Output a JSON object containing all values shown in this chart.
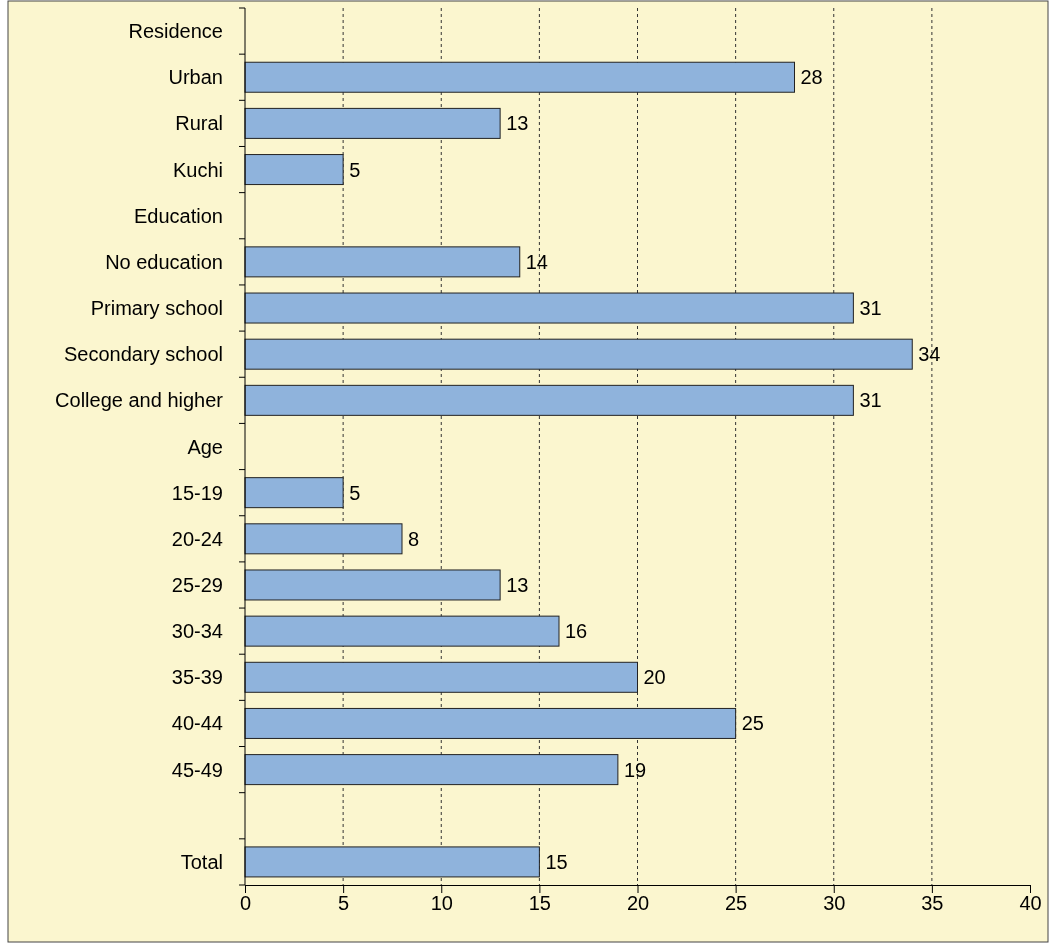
{
  "chart_data": {
    "type": "bar",
    "orientation": "horizontal",
    "categories": [
      "Residence",
      "Urban",
      "Rural",
      "Kuchi",
      "Education",
      "No education",
      "Primary school",
      "Secondary school",
      "College and higher",
      "Age",
      "15-19",
      "20-24",
      "25-29",
      "30-34",
      "35-39",
      "40-44",
      "45-49",
      null,
      "Total"
    ],
    "values": [
      null,
      28,
      13,
      5,
      null,
      14,
      31,
      34,
      31,
      null,
      5,
      8,
      13,
      16,
      20,
      25,
      19,
      null,
      15
    ],
    "color": "#8fb3dc",
    "xlim": [
      0,
      40
    ],
    "xticks": [
      0,
      5,
      10,
      15,
      20,
      25,
      30,
      35,
      40
    ],
    "grid": "x",
    "data_labels": true
  }
}
